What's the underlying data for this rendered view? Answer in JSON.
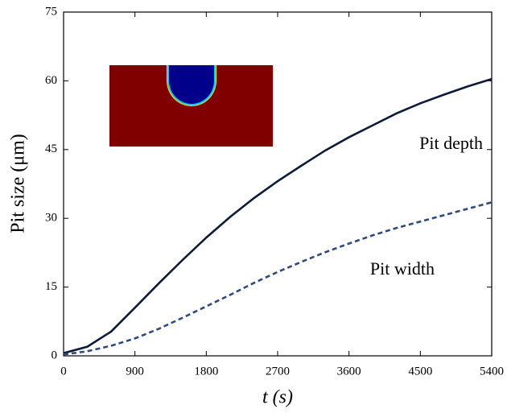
{
  "chart_data": {
    "type": "line",
    "xlabel": "t (s)",
    "ylabel": "Pit size (μm)",
    "x": [
      0,
      300,
      600,
      900,
      1200,
      1500,
      1800,
      2100,
      2400,
      2700,
      3000,
      3300,
      3600,
      3900,
      4200,
      4500,
      4800,
      5100,
      5400
    ],
    "series": [
      {
        "name": "Pit depth",
        "color": "#0d1b3a",
        "dash": false,
        "values": [
          0.6,
          2.0,
          5.3,
          10.5,
          15.8,
          20.9,
          25.8,
          30.3,
          34.4,
          38.1,
          41.5,
          44.8,
          47.7,
          50.3,
          52.9,
          55.1,
          57.0,
          58.8,
          60.4
        ]
      },
      {
        "name": "Pit width",
        "color": "#2e4a80",
        "dash": true,
        "values": [
          0.3,
          1.0,
          2.2,
          3.8,
          5.9,
          8.3,
          10.8,
          13.3,
          15.9,
          18.3,
          20.5,
          22.6,
          24.5,
          26.3,
          27.9,
          29.3,
          30.7,
          32.1,
          33.5
        ]
      }
    ],
    "xlim": [
      0,
      5400
    ],
    "xticks": [
      0,
      900,
      1800,
      2700,
      3600,
      4500,
      5400
    ],
    "ylim": [
      0,
      75
    ],
    "yticks": [
      0,
      15,
      30,
      45,
      60,
      75
    ],
    "grid": false
  }
}
